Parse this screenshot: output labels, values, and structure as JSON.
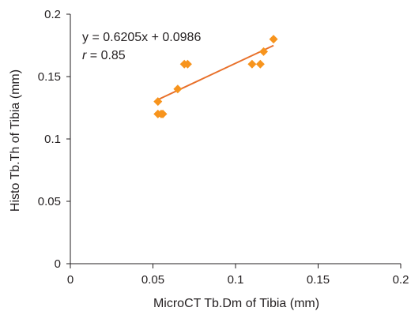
{
  "chart_data": {
    "type": "scatter",
    "title": "",
    "xlabel": "MicroCT Tb.Dm of Tibia (mm)",
    "ylabel": "Histo Tb.Th of Tibia (mm)",
    "xlim": [
      0,
      0.2
    ],
    "ylim": [
      0,
      0.2
    ],
    "x_ticks": [
      0,
      0.05,
      0.1,
      0.15,
      0.2
    ],
    "y_ticks": [
      0,
      0.05,
      0.1,
      0.15,
      0.2
    ],
    "x_tick_labels": [
      "0",
      "0.05",
      "0.1",
      "0.15",
      "0.2"
    ],
    "y_tick_labels": [
      "0",
      "0.05",
      "0.1",
      "0.15",
      "0.2"
    ],
    "grid": false,
    "legend": "none",
    "series": [
      {
        "marker": "diamond",
        "color": "#f7941d",
        "points": [
          {
            "x": 0.053,
            "y": 0.13
          },
          {
            "x": 0.053,
            "y": 0.12
          },
          {
            "x": 0.055,
            "y": 0.12
          },
          {
            "x": 0.056,
            "y": 0.12
          },
          {
            "x": 0.065,
            "y": 0.14
          },
          {
            "x": 0.069,
            "y": 0.16
          },
          {
            "x": 0.071,
            "y": 0.16
          },
          {
            "x": 0.11,
            "y": 0.16
          },
          {
            "x": 0.115,
            "y": 0.16
          },
          {
            "x": 0.117,
            "y": 0.17
          },
          {
            "x": 0.123,
            "y": 0.18
          }
        ]
      }
    ],
    "trendline": {
      "slope": 0.6205,
      "intercept": 0.0986,
      "x_range": [
        0.053,
        0.123
      ],
      "color": "#e8702a"
    },
    "annotations": {
      "equation": "y = 0.6205x + 0.0986",
      "r_symbol": "r",
      "r_value": " = 0.85"
    }
  }
}
